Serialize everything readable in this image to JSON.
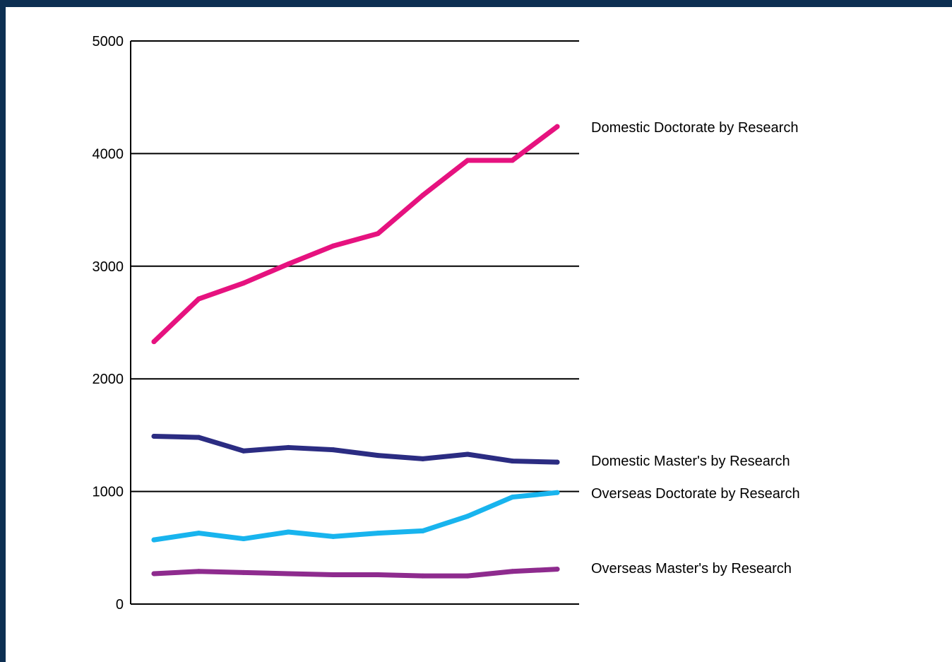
{
  "chart_data": {
    "type": "line",
    "title": "",
    "xlabel": "",
    "ylabel": "",
    "ylim": [
      0,
      5000
    ],
    "yticks": [
      0,
      1000,
      2000,
      3000,
      4000,
      5000
    ],
    "grid": true,
    "legend": "right",
    "x": [
      1,
      2,
      3,
      4,
      5,
      6,
      7,
      8,
      9,
      10
    ],
    "series": [
      {
        "name": "Domestic Doctorate by Research",
        "color": "#e6127f",
        "values": [
          2330,
          2710,
          2850,
          3020,
          3180,
          3290,
          3630,
          3940,
          3940,
          4240
        ]
      },
      {
        "name": "Domestic Master's by Research",
        "color": "#2b2c82",
        "values": [
          1490,
          1480,
          1360,
          1390,
          1370,
          1320,
          1290,
          1330,
          1270,
          1260
        ]
      },
      {
        "name": "Overseas Doctorate by Research",
        "color": "#18b4ee",
        "values": [
          570,
          630,
          580,
          640,
          600,
          630,
          650,
          780,
          950,
          990
        ]
      },
      {
        "name": "Overseas Master's by Research",
        "color": "#8e2b8e",
        "values": [
          270,
          290,
          280,
          270,
          260,
          260,
          250,
          250,
          290,
          310
        ]
      }
    ]
  }
}
